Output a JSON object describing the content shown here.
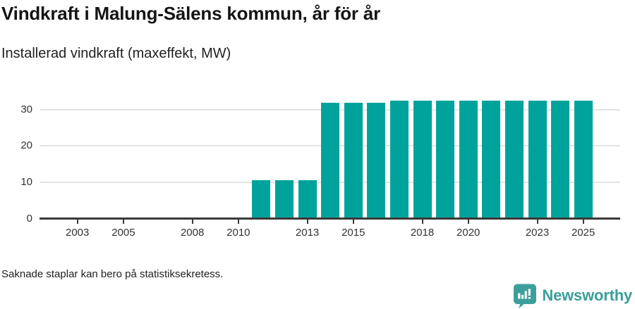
{
  "title": "Vindkraft i Malung-Sälens kommun, år för år",
  "subtitle": "Installerad vindkraft (maxeffekt, MW)",
  "footnote": "Saknade staplar kan bero på statistiksekretess.",
  "brand": {
    "name": "Newsworthy",
    "icon": "newsworthy-speech-bubble-bar-chart-icon",
    "color": "#3a9e9b",
    "icon_color": "#3d9f9b"
  },
  "colors": {
    "bar": "#00a39b",
    "axis": "#3a3a3a",
    "grid": "#e3e3e3",
    "tick_label": "#333333"
  },
  "chart_data": {
    "type": "bar",
    "title": "Vindkraft i Malung-Sälens kommun, år för år",
    "subtitle": "Installerad vindkraft (maxeffekt, MW)",
    "unit": "MW",
    "ylabel": "",
    "xlabel": "",
    "ylim": [
      0,
      37
    ],
    "yticks": [
      0,
      10,
      20,
      30
    ],
    "xticks": [
      2003,
      2005,
      2008,
      2010,
      2013,
      2015,
      2018,
      2020,
      2023,
      2025
    ],
    "grid": "horizontal",
    "missing_bars_note": "Saknade staplar kan bero på statistiksekretess.",
    "categories": [
      2002,
      2003,
      2004,
      2005,
      2006,
      2007,
      2008,
      2009,
      2010,
      2011,
      2012,
      2013,
      2014,
      2015,
      2016,
      2017,
      2018,
      2019,
      2020,
      2021,
      2022,
      2023,
      2024,
      2025
    ],
    "values": [
      null,
      null,
      null,
      null,
      null,
      null,
      null,
      null,
      null,
      10.7,
      10.7,
      10.7,
      31.9,
      31.9,
      31.9,
      32.4,
      32.4,
      32.4,
      32.4,
      32.4,
      32.4,
      32.4,
      32.4,
      32.4
    ]
  }
}
